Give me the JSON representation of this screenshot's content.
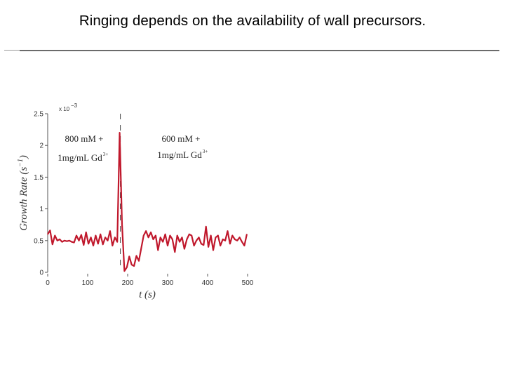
{
  "slide": {
    "title": "Ringing depends on the availability of wall precursors."
  },
  "colors": {
    "series": "#c0182c",
    "axis": "#555555",
    "marker": "#444444",
    "rule": "#6b6b6b"
  },
  "chart_data": {
    "type": "line",
    "xlabel": "t (s)",
    "ylabel": "Growth Rate (s",
    "ylabel_sup": "−1",
    "ylabel_close": ")",
    "y_exponent_prefix": "x 10",
    "y_exponent_sup": "−3",
    "xlim": [
      0,
      500
    ],
    "ylim": [
      0,
      2.5
    ],
    "x_ticks": [
      0,
      100,
      200,
      300,
      400,
      500
    ],
    "x_tick_labels": [
      "0",
      "100",
      "200",
      "300",
      "400",
      "500"
    ],
    "y_ticks": [
      0,
      0.5,
      1,
      1.5,
      2,
      2.5
    ],
    "y_tick_labels": [
      "0",
      "0.5",
      "1",
      "1.5",
      "2",
      "2.5"
    ],
    "vline_x": 180,
    "annotations": [
      {
        "line1": "800 mM +",
        "line2": "1mg/mL Gd",
        "sup": "3+"
      },
      {
        "line1": "600 mM +",
        "line2": "1mg/mL Gd",
        "sup": "3+"
      }
    ],
    "series": [
      {
        "x": [
          0,
          6,
          12,
          18,
          24,
          30,
          36,
          42,
          48,
          54,
          60,
          66,
          72,
          78,
          84,
          90,
          96,
          102,
          108,
          114,
          120,
          126,
          132,
          138,
          144,
          150,
          156,
          162,
          168,
          174,
          180,
          186,
          192,
          198,
          204,
          210,
          216,
          222,
          228,
          234,
          240,
          246,
          252,
          258,
          264,
          270,
          276,
          282,
          288,
          294,
          300,
          306,
          312,
          318,
          324,
          330,
          336,
          342,
          348,
          354,
          360,
          366,
          372,
          378,
          384,
          390,
          396,
          402,
          408,
          414,
          420,
          426,
          432,
          438,
          444,
          450,
          456,
          462,
          468,
          474,
          480,
          486,
          492,
          498
        ],
        "values": [
          0.6,
          0.66,
          0.44,
          0.58,
          0.5,
          0.52,
          0.48,
          0.5,
          0.49,
          0.5,
          0.48,
          0.47,
          0.58,
          0.5,
          0.59,
          0.43,
          0.63,
          0.45,
          0.55,
          0.42,
          0.58,
          0.45,
          0.6,
          0.44,
          0.55,
          0.5,
          0.65,
          0.42,
          0.55,
          0.48,
          2.2,
          0.75,
          0.02,
          0.08,
          0.25,
          0.12,
          0.1,
          0.26,
          0.18,
          0.38,
          0.58,
          0.65,
          0.55,
          0.63,
          0.52,
          0.58,
          0.35,
          0.55,
          0.48,
          0.6,
          0.42,
          0.58,
          0.52,
          0.32,
          0.58,
          0.48,
          0.55,
          0.37,
          0.52,
          0.6,
          0.58,
          0.42,
          0.5,
          0.55,
          0.45,
          0.43,
          0.72,
          0.4,
          0.58,
          0.35,
          0.55,
          0.58,
          0.42,
          0.52,
          0.5,
          0.65,
          0.45,
          0.58,
          0.52,
          0.5,
          0.55,
          0.48,
          0.42,
          0.6
        ]
      }
    ]
  }
}
